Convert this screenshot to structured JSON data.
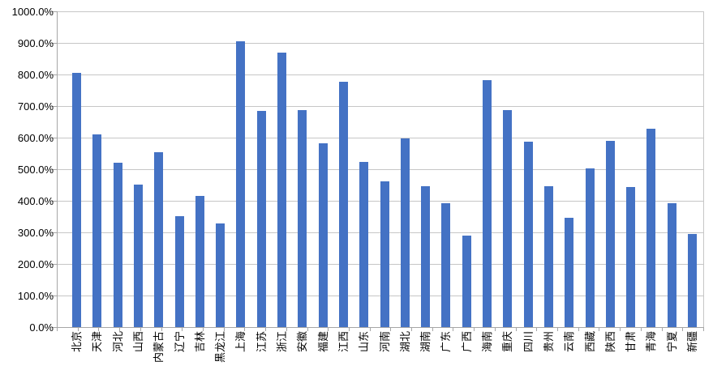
{
  "chart_data": {
    "type": "bar",
    "title": "",
    "xlabel": "",
    "ylabel": "",
    "unit": "%",
    "categories": [
      "北京",
      "天津",
      "河北",
      "山西",
      "内蒙古",
      "辽宁",
      "吉林",
      "黑龙江",
      "上海",
      "江苏",
      "浙江",
      "安徽",
      "福建",
      "江西",
      "山东",
      "河南",
      "湖北",
      "湖南",
      "广东",
      "广西",
      "海南",
      "重庆",
      "四川",
      "贵州",
      "云南",
      "西藏",
      "陕西",
      "甘肃",
      "青海",
      "宁夏",
      "新疆"
    ],
    "values": [
      805,
      610,
      521,
      452,
      553,
      352,
      416,
      329,
      905,
      684,
      870,
      686,
      582,
      778,
      523,
      461,
      598,
      446,
      393,
      289,
      781,
      688,
      587,
      445,
      347,
      503,
      590,
      443,
      628,
      392,
      295
    ],
    "ylim": [
      0,
      1000
    ],
    "y_tick_interval": 100,
    "y_tick_values": [
      0,
      100,
      200,
      300,
      400,
      500,
      600,
      700,
      800,
      900,
      1000
    ],
    "y_tick_labels": [
      "0.0%",
      "100.0%",
      "200.0%",
      "300.0%",
      "400.0%",
      "500.0%",
      "600.0%",
      "700.0%",
      "800.0%",
      "900.0%",
      "1000.0%"
    ],
    "grid": true,
    "legend": "none",
    "colors": {
      "bar": "#4472C4",
      "gridline": "#C6C6C6",
      "axis": "#A6A6A6",
      "label": "#000000",
      "background": "#FFFFFF"
    }
  }
}
